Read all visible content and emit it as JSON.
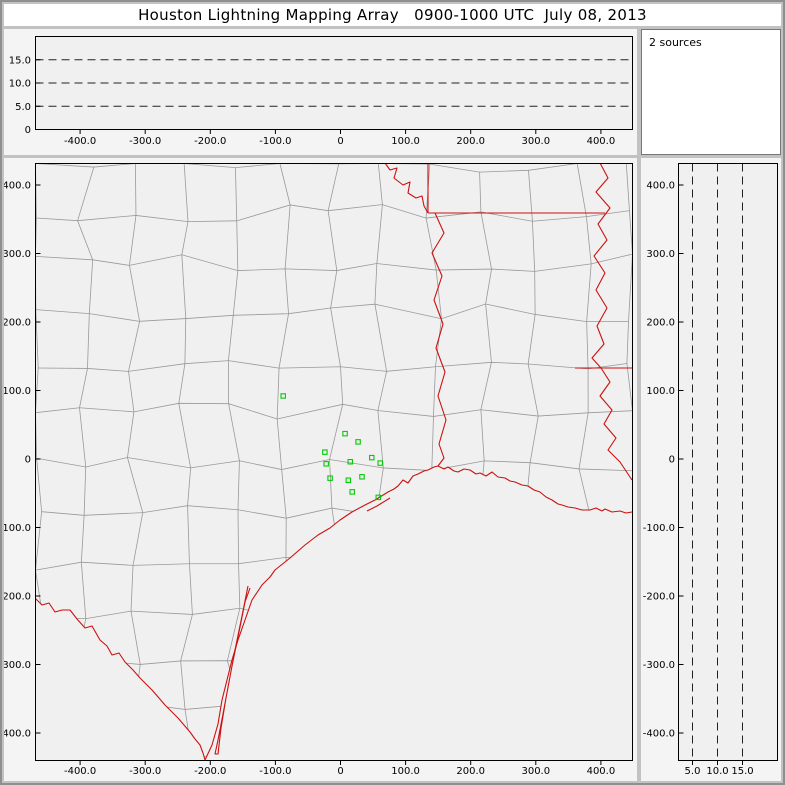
{
  "title": "Houston Lightning Mapping Array   0900-1000 UTC  July 08, 2013",
  "sources_panel": {
    "label": "2 sources"
  },
  "colors": {
    "frame": "#c2c2c2",
    "titlebar_bg": "#ffffff",
    "panel_bg": "#f4f4f4",
    "plot_bg": "#f0f0f0",
    "axis": "#000000",
    "grid_dash": "#222222",
    "county_line": "#999999",
    "state_line": "#cc1111",
    "station": "#00cc00"
  },
  "x_axis_km": {
    "ticks": [
      -400,
      -300,
      -200,
      -100,
      0,
      100,
      200,
      300,
      400
    ],
    "labels": [
      "-400.0",
      "-300.0",
      "-200.0",
      "-100.0",
      "0",
      "100.0",
      "200.0",
      "300.0",
      "400.0"
    ]
  },
  "y_axis_km": {
    "ticks": [
      400,
      300,
      200,
      100,
      0,
      -100,
      -200,
      -300,
      -400
    ],
    "labels": [
      "400.0",
      "300.0",
      "200.0",
      "100.0",
      "0",
      "-100.0",
      "-200.0",
      "-300.0",
      "-400.0"
    ]
  },
  "alt_axis_km": {
    "ticks": [
      15,
      10,
      5,
      0
    ],
    "labels": [
      "15.0",
      "10.0",
      "5.0",
      "0"
    ],
    "dashed": [
      5,
      10,
      15
    ]
  },
  "ns_alt_axis_km": {
    "ticks": [
      5,
      10,
      15
    ],
    "labels": [
      "5.0",
      "10.0",
      "15.0"
    ],
    "dashed": [
      5,
      10,
      15
    ]
  },
  "map_panel": {
    "stations_km": [
      [
        -88,
        92
      ],
      [
        7,
        37
      ],
      [
        27,
        25
      ],
      [
        -24,
        10
      ],
      [
        -22,
        -7
      ],
      [
        15,
        -4
      ],
      [
        48,
        2
      ],
      [
        61,
        -6
      ],
      [
        -16,
        -28
      ],
      [
        12,
        -31
      ],
      [
        33,
        -26
      ],
      [
        18,
        -48
      ],
      [
        58,
        -56
      ]
    ]
  },
  "chart_data": {
    "type": "scatter",
    "title": "Houston Lightning Mapping Array 0900-1000 UTC July 08, 2013",
    "panels": [
      {
        "name": "altitude_vs_east_west",
        "xlim": [
          -450,
          450
        ],
        "ylim_km": [
          0,
          20
        ],
        "y_gridlines_km": [
          5,
          10,
          15
        ],
        "points": []
      },
      {
        "name": "source_count_box",
        "text": "2 sources"
      },
      {
        "name": "plan_view_map",
        "xlim": [
          -450,
          450
        ],
        "ylim": [
          -450,
          450
        ],
        "station_markers_km": [
          [
            -88,
            92
          ],
          [
            7,
            37
          ],
          [
            27,
            25
          ],
          [
            -24,
            10
          ],
          [
            -22,
            -7
          ],
          [
            15,
            -4
          ],
          [
            48,
            2
          ],
          [
            61,
            -6
          ],
          [
            -16,
            -28
          ],
          [
            12,
            -31
          ],
          [
            33,
            -26
          ],
          [
            18,
            -48
          ],
          [
            58,
            -56
          ]
        ],
        "points": []
      },
      {
        "name": "altitude_vs_north_south",
        "xlim_km": [
          0,
          20
        ],
        "x_gridlines_km": [
          5,
          10,
          15
        ],
        "ylim": [
          -450,
          450
        ],
        "points": []
      }
    ]
  }
}
